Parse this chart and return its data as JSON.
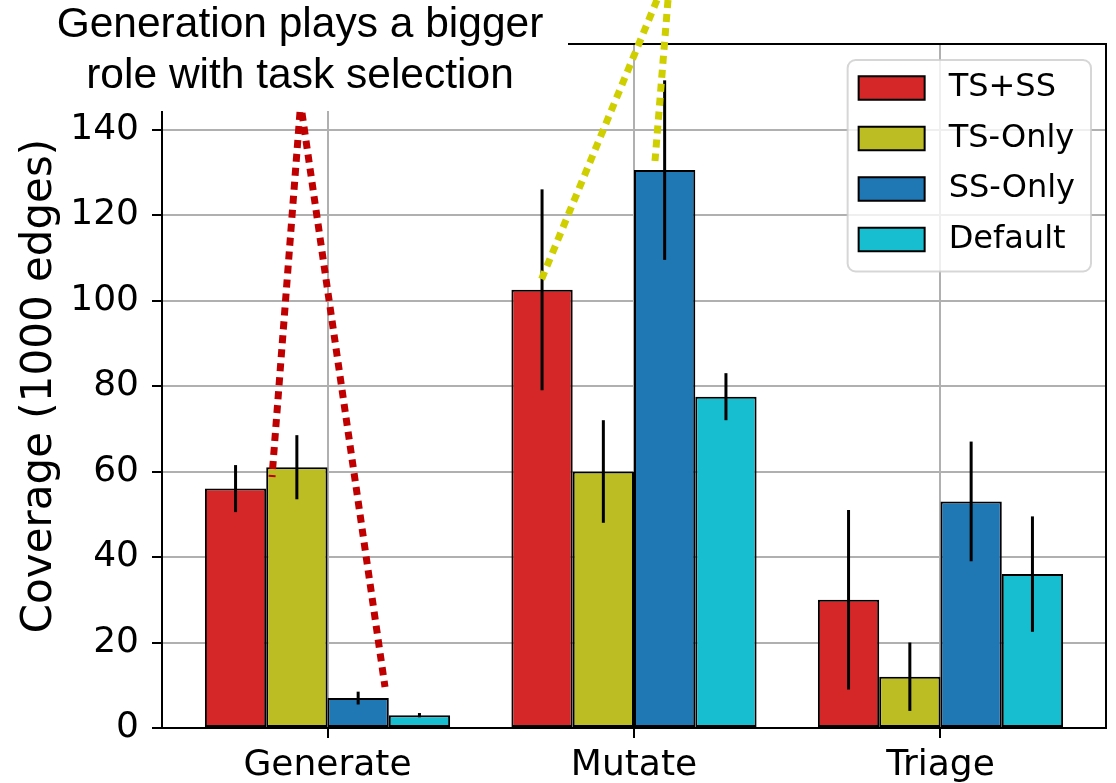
{
  "chart_data": {
    "type": "bar",
    "categories": [
      "Generate",
      "Mutate",
      "Triage"
    ],
    "series": [
      {
        "name": "TS+SS",
        "color": "#d62728",
        "values": [
          56,
          102.5,
          30
        ],
        "errors": [
          5.5,
          23.5,
          21
        ]
      },
      {
        "name": "TS-Only",
        "color": "#bcbd22",
        "values": [
          61,
          60,
          12
        ],
        "errors": [
          7.5,
          12,
          8
        ]
      },
      {
        "name": "SS-Only",
        "color": "#1f77b4",
        "values": [
          7,
          130.5,
          53
        ],
        "errors": [
          1.5,
          21,
          14
        ]
      },
      {
        "name": "Default",
        "color": "#17becf",
        "values": [
          3,
          77.5,
          36
        ],
        "errors": [
          0.5,
          5.5,
          13.5
        ]
      }
    ],
    "ylabel": "Coverage (1000 edges)",
    "ylim": [
      0,
      160
    ],
    "yticks": [
      0,
      20,
      40,
      60,
      80,
      100,
      120,
      140
    ],
    "grid": true,
    "legend": "top right",
    "annotations": [
      "Generation plays a bigger role with task selection"
    ]
  }
}
